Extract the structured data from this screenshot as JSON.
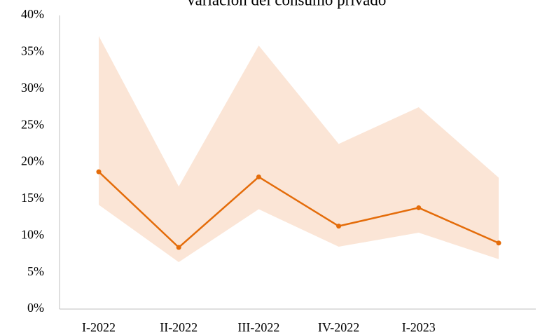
{
  "chart_data": {
    "type": "line",
    "title": "Variación del consumo privado",
    "categories": [
      "I-2022",
      "II-2022",
      "III-2022",
      "IV-2022",
      "I-2023",
      null
    ],
    "series": [
      {
        "color": "#e46c0a",
        "values": [
          18.7,
          8.4,
          18.0,
          11.3,
          13.8,
          9.0
        ]
      }
    ],
    "band": {
      "color": "#fbe5d6",
      "upper": [
        37.2,
        16.7,
        35.9,
        22.5,
        27.5,
        17.9
      ],
      "lower": [
        14.2,
        6.4,
        13.6,
        8.5,
        10.4,
        6.8
      ]
    },
    "ylim": [
      0,
      40
    ],
    "yticks": [
      {
        "value": 0,
        "label": "0%"
      },
      {
        "value": 5,
        "label": "5%"
      },
      {
        "value": 10,
        "label": "10%"
      },
      {
        "value": 15,
        "label": "15%"
      },
      {
        "value": 20,
        "label": "20%"
      },
      {
        "value": 25,
        "label": "25%"
      },
      {
        "value": 30,
        "label": "30%"
      },
      {
        "value": 35,
        "label": "35%"
      },
      {
        "value": 40,
        "label": "40%"
      }
    ],
    "grid": false
  }
}
